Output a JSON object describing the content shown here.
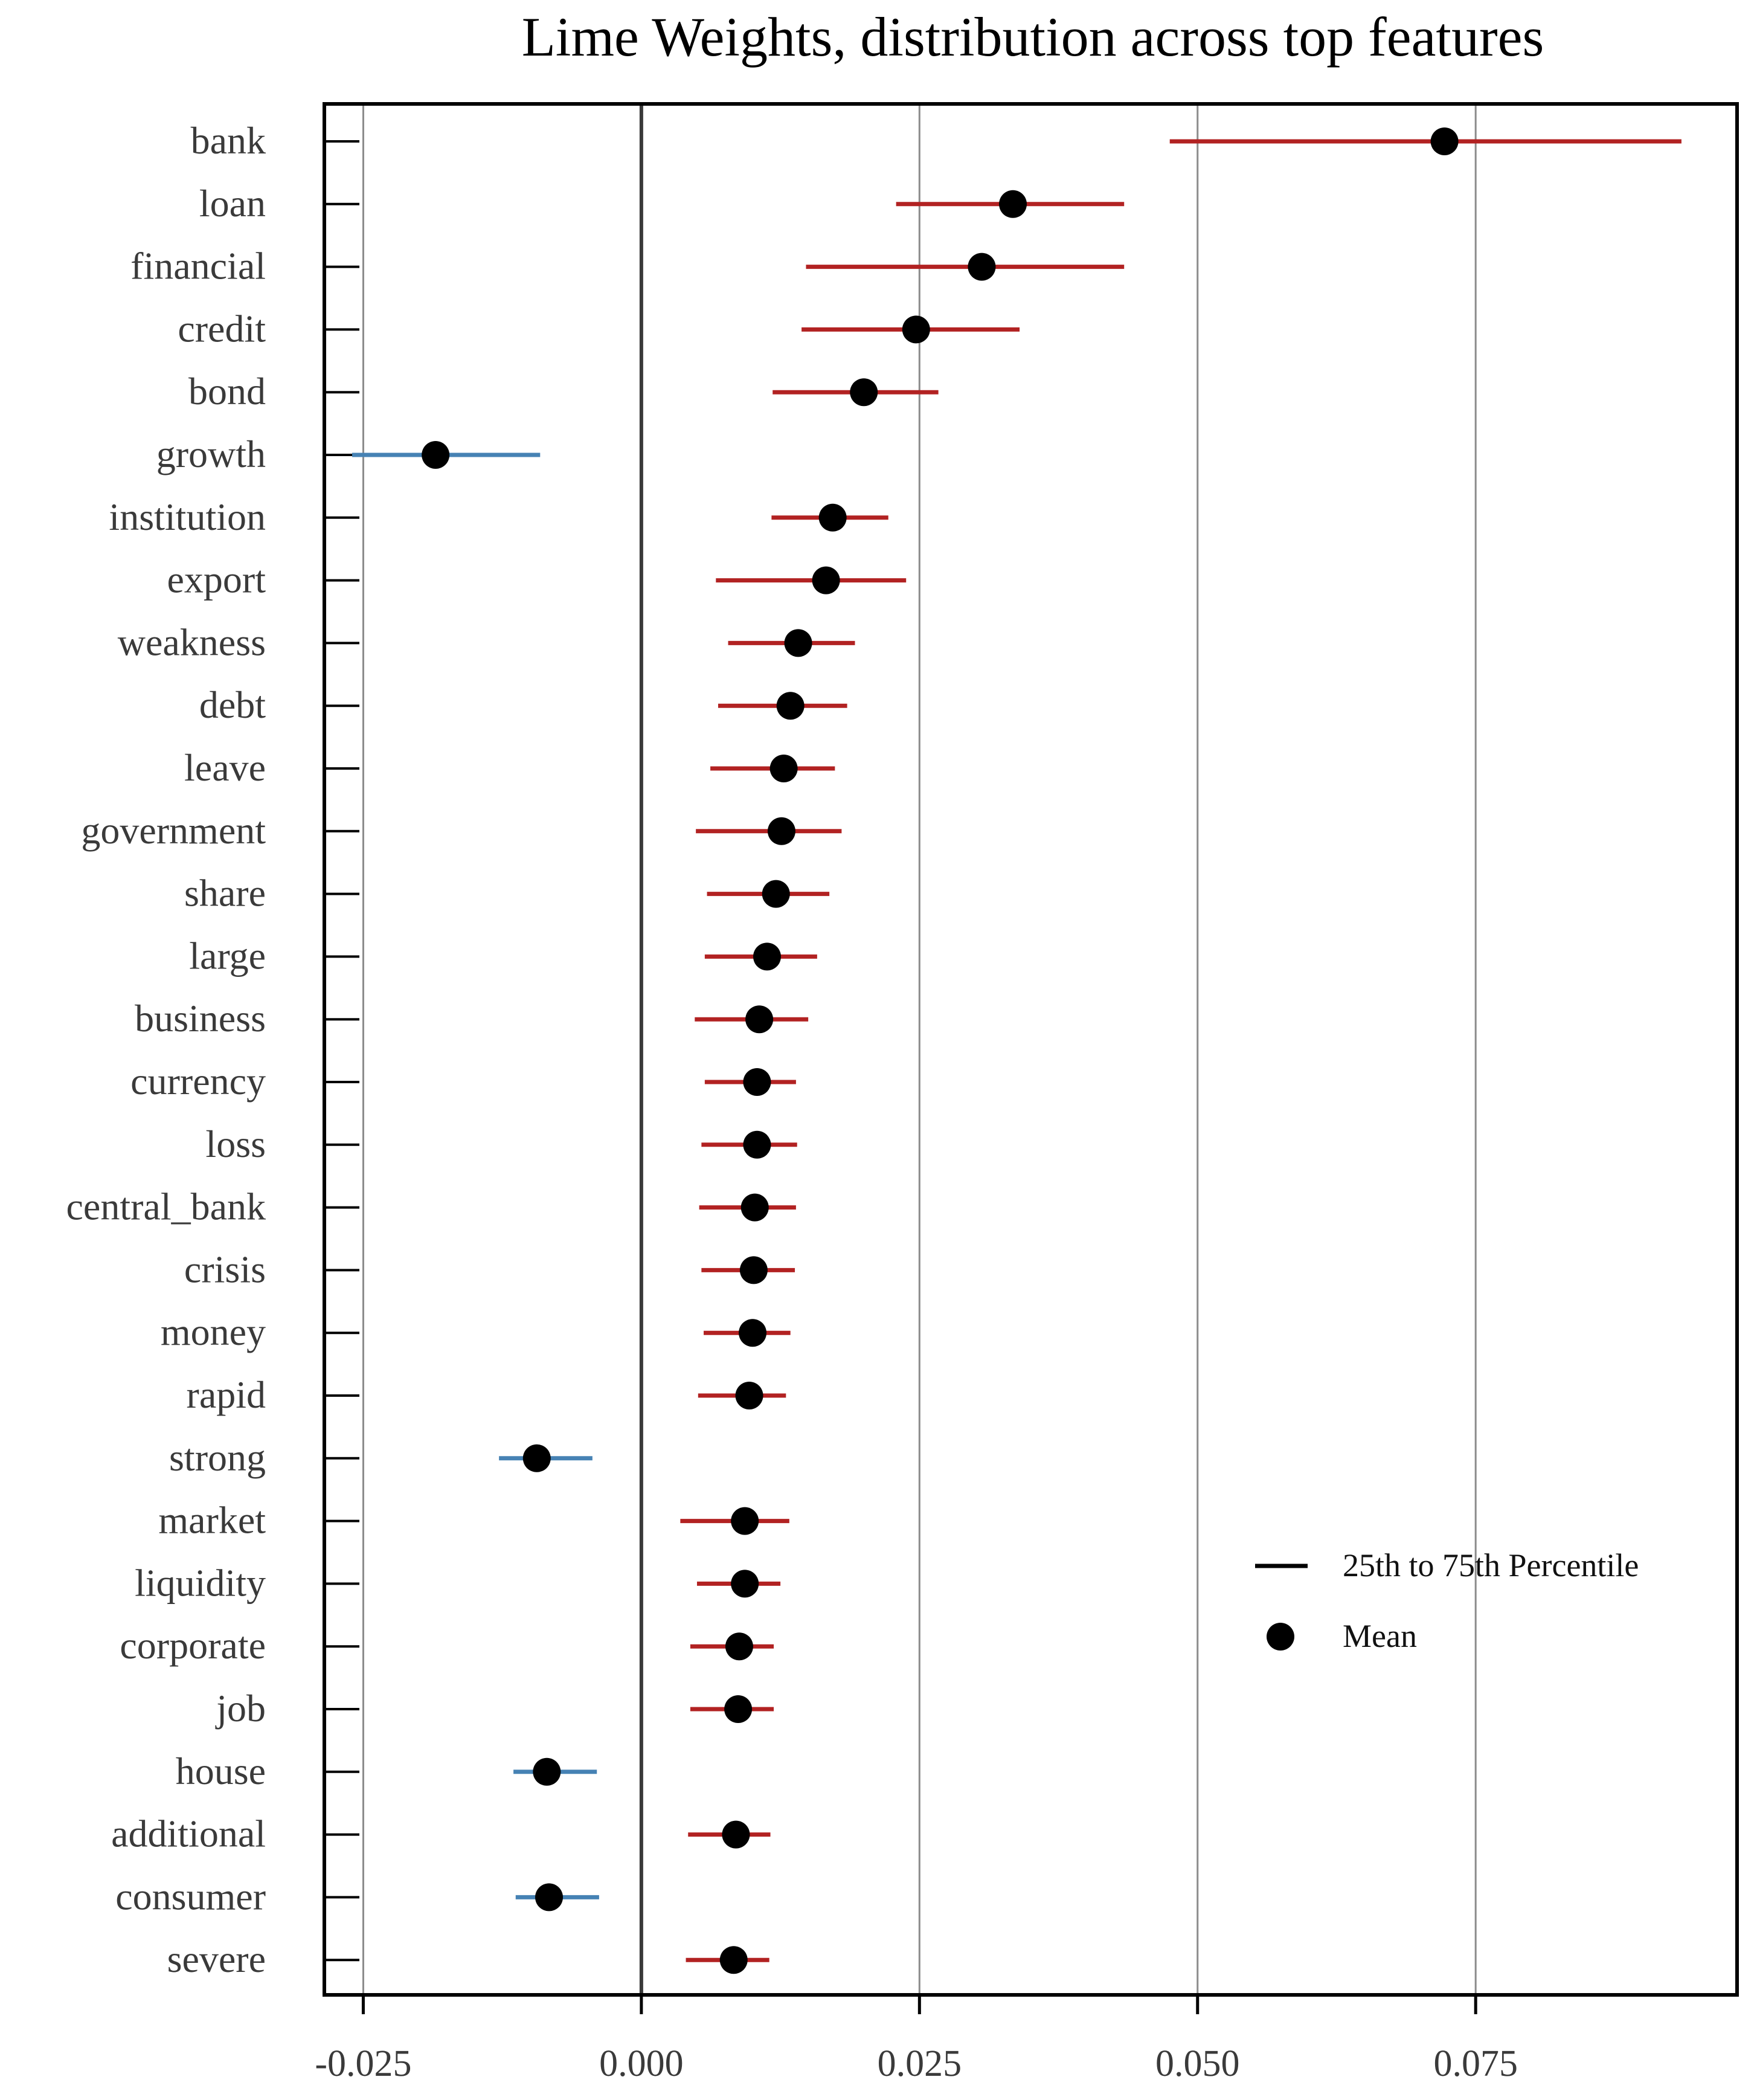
{
  "chart_data": {
    "type": "dot-range",
    "title": "Lime Weights, distribution across top features",
    "xlabel": "",
    "ylabel": "",
    "xlim": [
      -0.0285,
      0.0985
    ],
    "x_ticks": [
      -0.025,
      0.0,
      0.025,
      0.05,
      0.075
    ],
    "x_tick_labels": [
      "-0.025",
      "0.000",
      "0.025",
      "0.050",
      "0.075"
    ],
    "grid": "vertical lines at x ticks",
    "legend": {
      "placement": "bottom-right",
      "range_label": "25th to 75th Percentile",
      "mean_label": "Mean"
    },
    "colors": {
      "positive_range": "#b22222",
      "negative_range": "#4682b4",
      "mean": "#000000",
      "grid": "#8c8c8c",
      "zero_line": "#3a3a3a"
    },
    "features": [
      {
        "name": "bank",
        "mean": 0.0722,
        "p25": 0.0475,
        "p75": 0.0935
      },
      {
        "name": "loan",
        "mean": 0.0334,
        "p25": 0.0229,
        "p75": 0.0434
      },
      {
        "name": "financial",
        "mean": 0.0306,
        "p25": 0.0148,
        "p75": 0.0434
      },
      {
        "name": "credit",
        "mean": 0.0247,
        "p25": 0.0144,
        "p75": 0.034
      },
      {
        "name": "bond",
        "mean": 0.02,
        "p25": 0.0118,
        "p75": 0.0267
      },
      {
        "name": "growth",
        "mean": -0.0185,
        "p25": -0.026,
        "p75": -0.0091
      },
      {
        "name": "institution",
        "mean": 0.0172,
        "p25": 0.0117,
        "p75": 0.0222
      },
      {
        "name": "export",
        "mean": 0.0166,
        "p25": 0.0067,
        "p75": 0.0238
      },
      {
        "name": "weakness",
        "mean": 0.0141,
        "p25": 0.0078,
        "p75": 0.0192
      },
      {
        "name": "debt",
        "mean": 0.0134,
        "p25": 0.0069,
        "p75": 0.0185
      },
      {
        "name": "leave",
        "mean": 0.0128,
        "p25": 0.0062,
        "p75": 0.0174
      },
      {
        "name": "government",
        "mean": 0.0126,
        "p25": 0.0049,
        "p75": 0.018
      },
      {
        "name": "share",
        "mean": 0.0121,
        "p25": 0.0059,
        "p75": 0.0169
      },
      {
        "name": "large",
        "mean": 0.0113,
        "p25": 0.0057,
        "p75": 0.0158
      },
      {
        "name": "business",
        "mean": 0.0106,
        "p25": 0.0048,
        "p75": 0.015
      },
      {
        "name": "currency",
        "mean": 0.0104,
        "p25": 0.0057,
        "p75": 0.0139
      },
      {
        "name": "loss",
        "mean": 0.0104,
        "p25": 0.0054,
        "p75": 0.014
      },
      {
        "name": "central_bank",
        "mean": 0.0102,
        "p25": 0.0052,
        "p75": 0.0139
      },
      {
        "name": "crisis",
        "mean": 0.0101,
        "p25": 0.0054,
        "p75": 0.0138
      },
      {
        "name": "money",
        "mean": 0.01,
        "p25": 0.0056,
        "p75": 0.0134
      },
      {
        "name": "rapid",
        "mean": 0.0097,
        "p25": 0.0051,
        "p75": 0.013
      },
      {
        "name": "strong",
        "mean": -0.0094,
        "p25": -0.0128,
        "p75": -0.0044
      },
      {
        "name": "market",
        "mean": 0.0093,
        "p25": 0.0035,
        "p75": 0.0133
      },
      {
        "name": "liquidity",
        "mean": 0.0093,
        "p25": 0.005,
        "p75": 0.0125
      },
      {
        "name": "corporate",
        "mean": 0.0088,
        "p25": 0.0044,
        "p75": 0.0119
      },
      {
        "name": "job",
        "mean": 0.0087,
        "p25": 0.0044,
        "p75": 0.0119
      },
      {
        "name": "house",
        "mean": -0.0085,
        "p25": -0.0115,
        "p75": -0.004
      },
      {
        "name": "additional",
        "mean": 0.0085,
        "p25": 0.0042,
        "p75": 0.0116
      },
      {
        "name": "consumer",
        "mean": -0.0083,
        "p25": -0.0113,
        "p75": -0.0038
      },
      {
        "name": "severe",
        "mean": 0.0083,
        "p25": 0.004,
        "p75": 0.0115
      }
    ]
  }
}
